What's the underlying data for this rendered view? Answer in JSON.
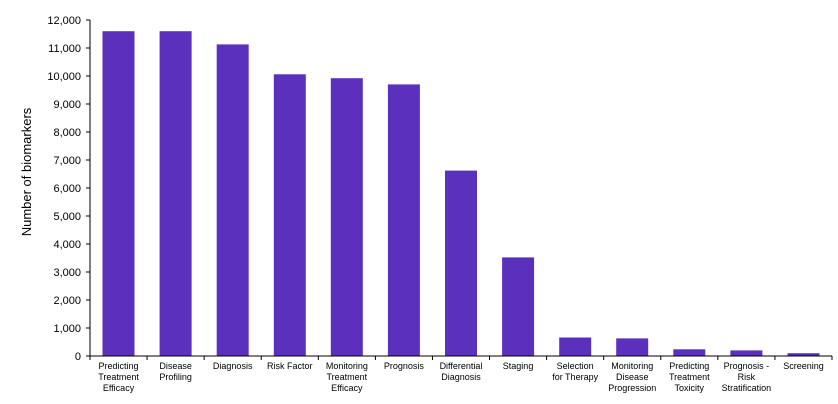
{
  "chart_data": {
    "type": "bar",
    "title": "",
    "xlabel": "",
    "ylabel": "Number of biomarkers",
    "ylim": [
      0,
      12000
    ],
    "ytick_step": 1000,
    "yticks": [
      "0",
      "1,000",
      "2,000",
      "3,000",
      "4,000",
      "5,000",
      "6,000",
      "7,000",
      "8,000",
      "9,000",
      "10,000",
      "11,000",
      "12,000"
    ],
    "grid": false,
    "legend": "none",
    "bar_color": "#5b30bd",
    "categories": [
      [
        "Predicting",
        "Treatment",
        "Efficacy"
      ],
      [
        "Disease",
        "Profiling"
      ],
      [
        "Diagnosis"
      ],
      [
        "Risk Factor"
      ],
      [
        "Monitoring",
        "Treatment",
        "Efficacy"
      ],
      [
        "Prognosis"
      ],
      [
        "Differential",
        "Diagnosis"
      ],
      [
        "Staging"
      ],
      [
        "Selection",
        "for Therapy"
      ],
      [
        "Monitoring",
        "Disease",
        "Progression"
      ],
      [
        "Predicting",
        "Treatment",
        "Toxicity"
      ],
      [
        "Prognosis -",
        "Risk",
        "Stratification"
      ],
      [
        "Screening"
      ]
    ],
    "values": [
      11600,
      11600,
      11130,
      10060,
      9920,
      9700,
      6620,
      3520,
      660,
      630,
      240,
      200,
      100
    ]
  }
}
